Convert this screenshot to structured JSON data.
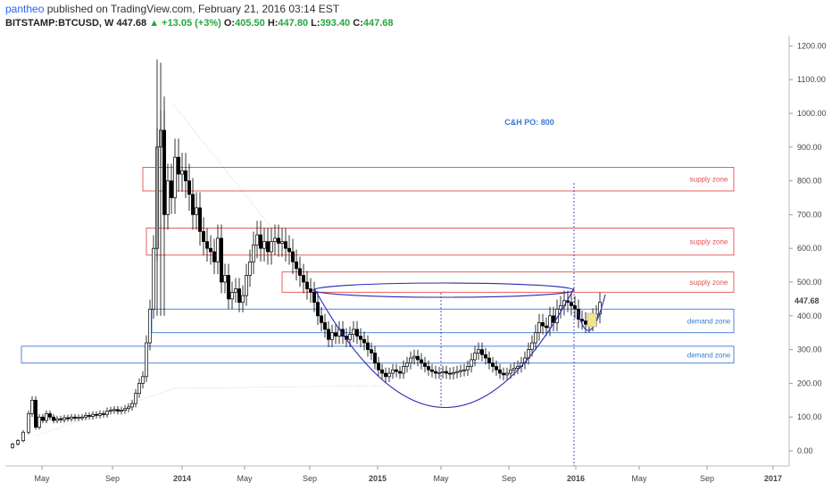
{
  "header": {
    "username": "pantheo",
    "published_text": "published on TradingView.com, February 21, 2016 03:14 EST"
  },
  "symbol": {
    "ticker": "BITSTAMP:BTCUSD, W",
    "price": "447.68",
    "change_arrow": "▲",
    "change": "+13.05 (+3%)",
    "open_label": "O:",
    "open": "405.50",
    "high_label": "H:",
    "high": "447.80",
    "low_label": "L:",
    "low": "393.40",
    "close_label": "C:",
    "close": "447.68"
  },
  "chart_data": {
    "type": "candlestick",
    "y_ticks": [
      "1200.00",
      "1100.00",
      "1000.00",
      "900.00",
      "800.00",
      "700.00",
      "600.00",
      "500.00",
      "400.00",
      "300.00",
      "200.00",
      "100.00",
      "0.00"
    ],
    "y_tick_values": [
      1200,
      1100,
      1000,
      900,
      800,
      700,
      600,
      500,
      400,
      300,
      200,
      100,
      0
    ],
    "last_price_label": "447.68",
    "x_ticks": [
      "May",
      "Sep",
      "2014",
      "May",
      "Sep",
      "2015",
      "May",
      "Sep",
      "2016",
      "May",
      "Sep",
      "2017"
    ],
    "annotation": "C&H PO: 800",
    "zones": [
      {
        "label": "supply zone",
        "low": 770,
        "high": 840,
        "color": "#e05050"
      },
      {
        "label": "supply zone",
        "low": 580,
        "high": 660,
        "color": "#e05050"
      },
      {
        "label": "supply zone",
        "low": 470,
        "high": 530,
        "color": "#e05050"
      },
      {
        "label": "demand zone",
        "low": 350,
        "high": 420,
        "color": "#3a78d6"
      },
      {
        "label": "demand zone",
        "low": 260,
        "high": 310,
        "color": "#3a78d6"
      }
    ],
    "colors": {
      "candle": "#000000",
      "zone_supply": "#e05050",
      "zone_demand": "#3a78d6",
      "cup": "#2a2ab0",
      "annotation": "#3a78d6",
      "grid": "#eeeeee"
    }
  }
}
